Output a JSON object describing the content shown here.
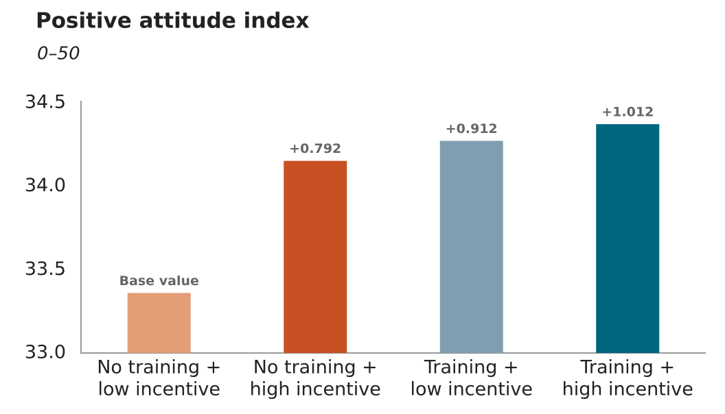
{
  "chart_data": {
    "type": "bar",
    "title": "Positive attitude index",
    "subtitle": "0–50",
    "categories": [
      [
        "No training +",
        "low incentive"
      ],
      [
        "No training +",
        "high incentive"
      ],
      [
        "Training +",
        "low incentive"
      ],
      [
        "Training +",
        "high incentive"
      ]
    ],
    "values": [
      33.36,
      34.152,
      34.272,
      34.372
    ],
    "annotations": [
      "Base value",
      "+0.792",
      "+0.912",
      "+1.012"
    ],
    "colors": [
      "#e39e78",
      "#c75122",
      "#7f9fb0",
      "#00667e"
    ],
    "ylim": [
      33,
      34.5
    ],
    "yticks": [
      {
        "value": 33,
        "label": "33.0"
      },
      33.5,
      {
        "value": 34,
        "label": "34.0"
      },
      34.5
    ]
  }
}
